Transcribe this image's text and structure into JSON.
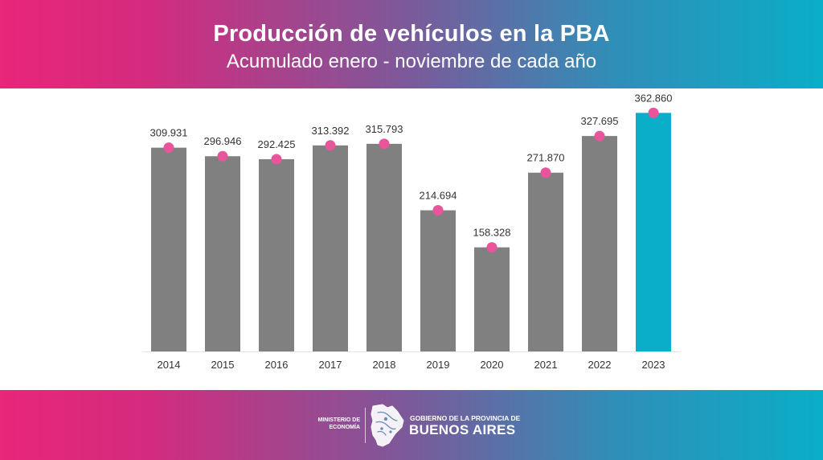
{
  "header": {
    "title": "Producción de vehículos en la PBA",
    "subtitle": "Acumulado enero - noviembre de cada año"
  },
  "chart_data": {
    "type": "bar",
    "title": "Producción de vehículos en la PBA",
    "subtitle": "Acumulado enero - noviembre de cada año",
    "categories": [
      "2014",
      "2015",
      "2016",
      "2017",
      "2018",
      "2019",
      "2020",
      "2021",
      "2022",
      "2023"
    ],
    "values": [
      309931,
      296946,
      292425,
      313392,
      315793,
      214694,
      158328,
      271870,
      327695,
      362860
    ],
    "labels": [
      "309.931",
      "296.946",
      "292.425",
      "313.392",
      "315.793",
      "214.694",
      "158.328",
      "271.870",
      "327.695",
      "362.860"
    ],
    "highlight_category": "2023",
    "xlabel": "",
    "ylabel": "",
    "ylim": [
      0,
      400000
    ],
    "grid": false,
    "colors": {
      "bar": "#808080",
      "highlight": "#0aaec8",
      "marker": "#e8559a",
      "label": "#333333"
    }
  },
  "footer": {
    "ministry_line1": "MINISTERIO DE",
    "ministry_line2": "ECONOMÍA",
    "gov_line1": "GOBIERNO DE LA PROVINCIA DE",
    "gov_line2": "BUENOS AIRES",
    "logo_icon": "province-map-icon"
  }
}
